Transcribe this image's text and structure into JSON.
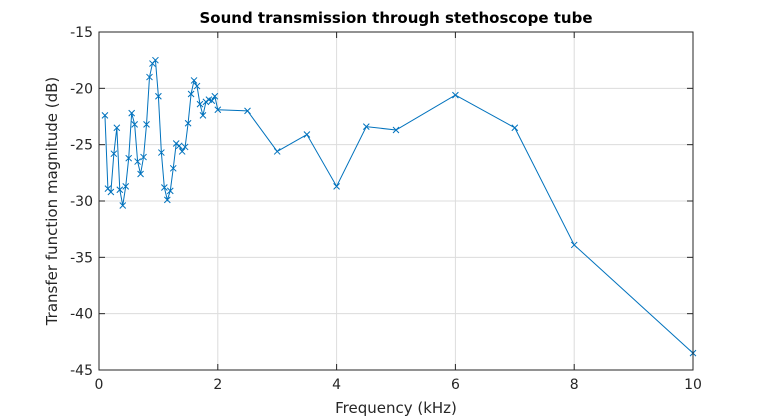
{
  "chart_data": {
    "type": "line",
    "title": "Sound transmission through stethoscope tube",
    "xlabel": "Frequency (kHz)",
    "ylabel": "Transfer function magnitude (dB)",
    "xlim": [
      0,
      10
    ],
    "ylim": [
      -45,
      -15
    ],
    "xticks": [
      0,
      2,
      4,
      6,
      8,
      10
    ],
    "yticks": [
      -15,
      -20,
      -25,
      -30,
      -35,
      -40,
      -45
    ],
    "grid": true,
    "marker": "x",
    "line_color": "#0072BD",
    "series": [
      {
        "x": [
          0.1,
          0.15,
          0.2,
          0.25,
          0.3,
          0.35,
          0.4,
          0.45,
          0.5,
          0.55,
          0.6,
          0.65,
          0.7,
          0.75,
          0.8,
          0.85,
          0.9,
          0.95,
          1.0,
          1.05,
          1.1,
          1.15,
          1.2,
          1.25,
          1.3,
          1.35,
          1.4,
          1.45,
          1.5,
          1.55,
          1.6,
          1.65,
          1.7,
          1.75,
          1.8,
          1.85,
          1.9,
          1.95,
          2.0,
          2.5,
          3.0,
          3.5,
          4.0,
          4.5,
          5.0,
          6.0,
          7.0,
          8.0,
          10.0
        ],
        "y": [
          -22.4,
          -28.9,
          -29.2,
          -25.8,
          -23.5,
          -29.0,
          -30.4,
          -28.7,
          -26.2,
          -22.2,
          -23.2,
          -26.5,
          -27.6,
          -26.1,
          -23.2,
          -19.0,
          -17.8,
          -17.5,
          -20.7,
          -25.7,
          -28.8,
          -29.9,
          -29.1,
          -27.1,
          -24.9,
          -25.1,
          -25.6,
          -25.2,
          -23.1,
          -20.5,
          -19.3,
          -19.8,
          -21.4,
          -22.4,
          -21.2,
          -21.0,
          -21.1,
          -20.7,
          -21.9,
          -22.0,
          -25.6,
          -24.1,
          -28.7,
          -23.4,
          -23.7,
          -20.6,
          -23.5,
          -33.9,
          -43.5
        ]
      }
    ]
  }
}
